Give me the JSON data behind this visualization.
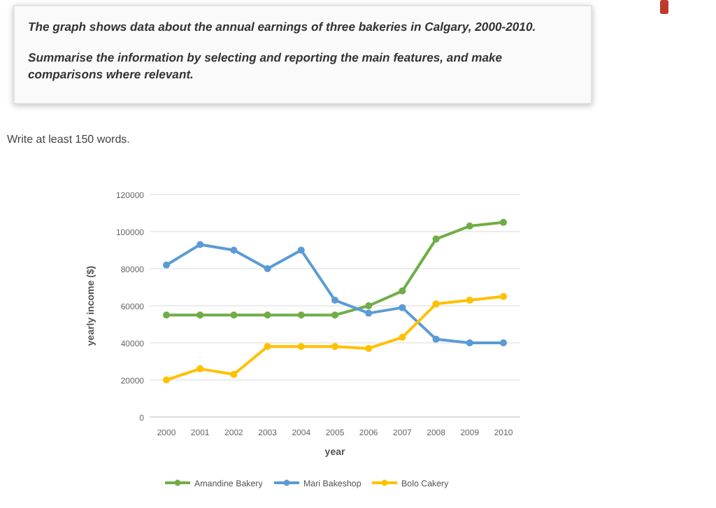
{
  "chart_data": {
    "type": "line",
    "title": "The graph shows data about the annual earnings of three bakeries in Calgary, 2000-2010.",
    "subtitle": "Summarise the information by selecting and reporting the main features, and make comparisons where relevant.",
    "annotations": [
      "Write at least 150 words."
    ],
    "xlabel": "year",
    "ylabel": "yearly income ($)",
    "categories": [
      "2000",
      "2001",
      "2002",
      "2003",
      "2004",
      "2005",
      "2006",
      "2007",
      "2008",
      "2009",
      "2010"
    ],
    "series": [
      {
        "name": "Amandine Bakery",
        "color": "#70ad47",
        "values": [
          55000,
          55000,
          55000,
          55000,
          55000,
          55000,
          60000,
          68000,
          96000,
          103000,
          105000
        ]
      },
      {
        "name": "Mari Bakeshop",
        "color": "#5b9bd5",
        "values": [
          82000,
          93000,
          90000,
          80000,
          90000,
          63000,
          56000,
          59000,
          42000,
          40000,
          40000
        ]
      },
      {
        "name": "Bolo Cakery",
        "color": "#ffc000",
        "values": [
          20000,
          26000,
          23000,
          38000,
          38000,
          38000,
          37000,
          43000,
          61000,
          63000,
          65000
        ]
      }
    ],
    "ylim": [
      0,
      120000
    ],
    "yticks": [
      0,
      20000,
      40000,
      60000,
      80000,
      100000,
      120000
    ],
    "grid": "y",
    "legend": "bottom",
    "marker": "circle",
    "line_style": "solid"
  }
}
